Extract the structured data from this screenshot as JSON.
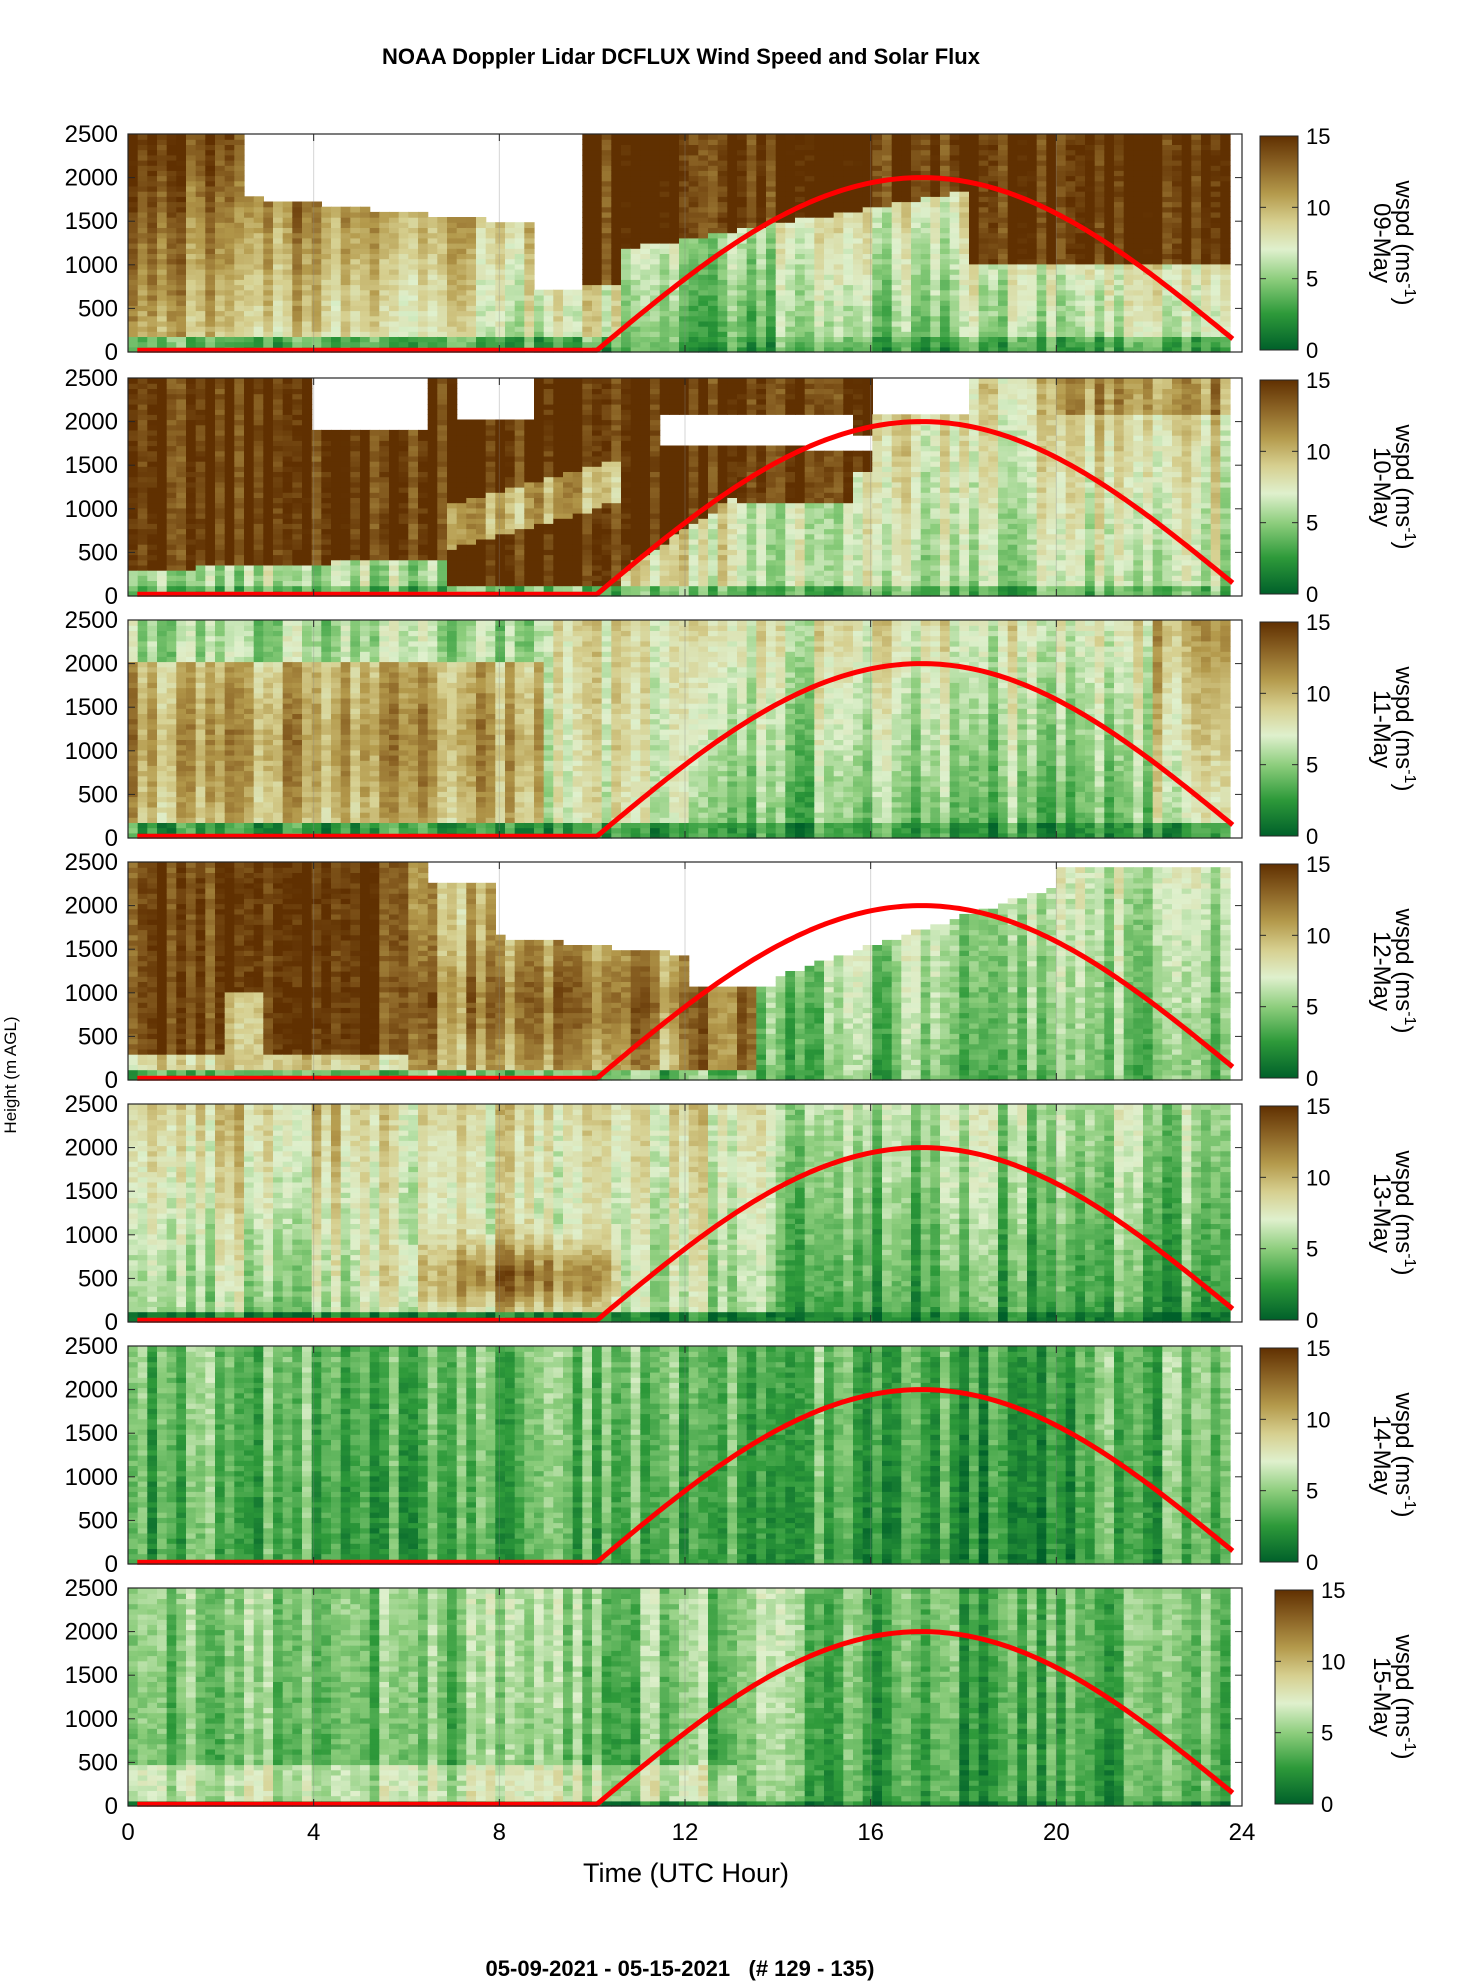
{
  "title": "NOAA Doppler Lidar DCFLUX Wind Speed and Solar Flux",
  "footer": "05-09-2021 - 05-15-2021   (# 129 - 135)",
  "y_label": "Height (m AGL)",
  "x_label": "Time (UTC Hour)",
  "x_ticks": [
    "0",
    "4",
    "8",
    "12",
    "16",
    "20",
    "24"
  ],
  "y_ticks": [
    "0",
    "500",
    "1000",
    "1500",
    "2000",
    "2500"
  ],
  "colorbar_ticks": [
    "0",
    "5",
    "10",
    "15"
  ],
  "colorbar_label": "wspd (ms",
  "colorbar_label_sup": "-1",
  "colorbar_label_close": ")",
  "colors": {
    "low": "#00602a",
    "mid": "#d9edc7",
    "high": "#603001",
    "solar": "#ff0000"
  },
  "chart_data": {
    "type": "heatmap",
    "xlabel": "Time (UTC Hour)",
    "ylabel": "Height (m AGL)",
    "xlim": [
      0,
      24
    ],
    "ylim": [
      0,
      2500
    ],
    "clim": [
      0,
      15
    ],
    "colorbar_label": "wspd (ms-1)",
    "panels": [
      {
        "date": "09-May",
        "profile": "d09"
      },
      {
        "date": "10-May",
        "profile": "d10"
      },
      {
        "date": "11-May",
        "profile": "d11"
      },
      {
        "date": "12-May",
        "profile": "d12"
      },
      {
        "date": "13-May",
        "profile": "d13"
      },
      {
        "date": "14-May",
        "profile": "d14"
      },
      {
        "date": "15-May",
        "profile": "d15"
      }
    ],
    "solar_flux": {
      "sunrise_hour": 10.1,
      "peak_hour": 17.1,
      "end_hour": 23.8,
      "peak_height": 2000,
      "base_height": 20,
      "end_height": 150
    }
  }
}
